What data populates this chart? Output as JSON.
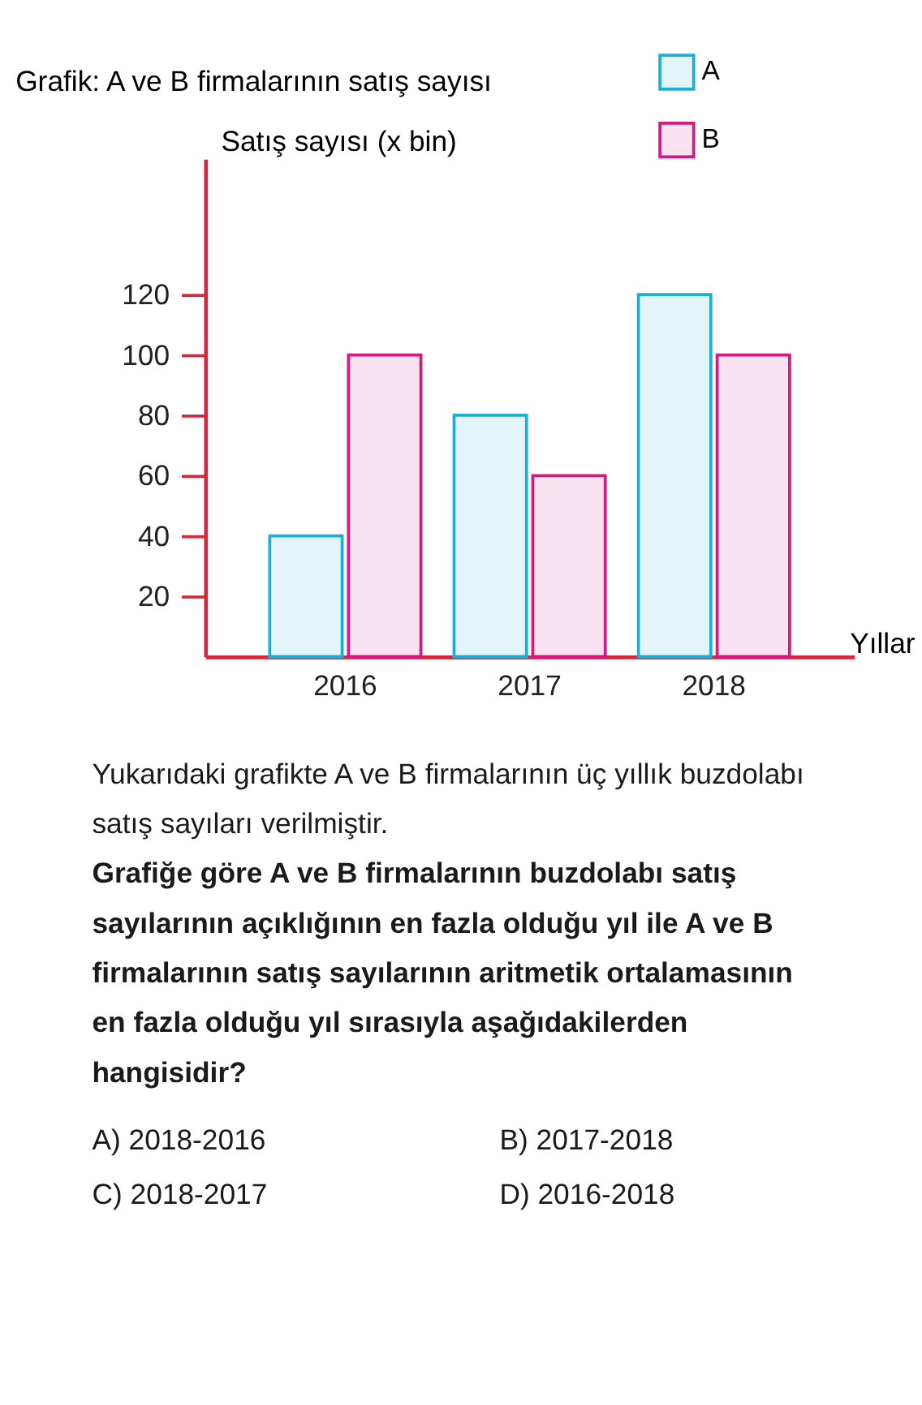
{
  "chart_data": {
    "type": "bar",
    "title": "Grafik: A ve B firmalarının satış sayısı",
    "ylabel": "Satış sayısı (x bin)",
    "xlabel": "Yıllar",
    "categories": [
      "2016",
      "2017",
      "2018"
    ],
    "series": [
      {
        "name": "A",
        "color": "#1aafd6",
        "values": [
          40,
          80,
          120
        ]
      },
      {
        "name": "B",
        "color": "#d6197f",
        "values": [
          100,
          60,
          100
        ]
      }
    ],
    "ylim": [
      0,
      165
    ],
    "yticks": [
      20,
      40,
      60,
      80,
      100,
      120
    ],
    "grid": false,
    "legend": "top right",
    "annotations": [
      "Yukarıdaki grafikte A ve B firmalarının üç yıllık buzdolabı satış sayıları verilmiştir.",
      "Grafiğe göre A ve B firmalarının buzdolabı satış sayılarının açıklığının en fazla olduğu yıl ile A ve B firmalarının satış sayılarının aritmetik ortalamasının en fazla olduğu yıl sırasıyla aşağıdakilerden hangisidir?",
      "A) 2018-2016",
      "B) 2017-2018",
      "C) 2018-2017",
      "D) 2016-2018"
    ]
  }
}
